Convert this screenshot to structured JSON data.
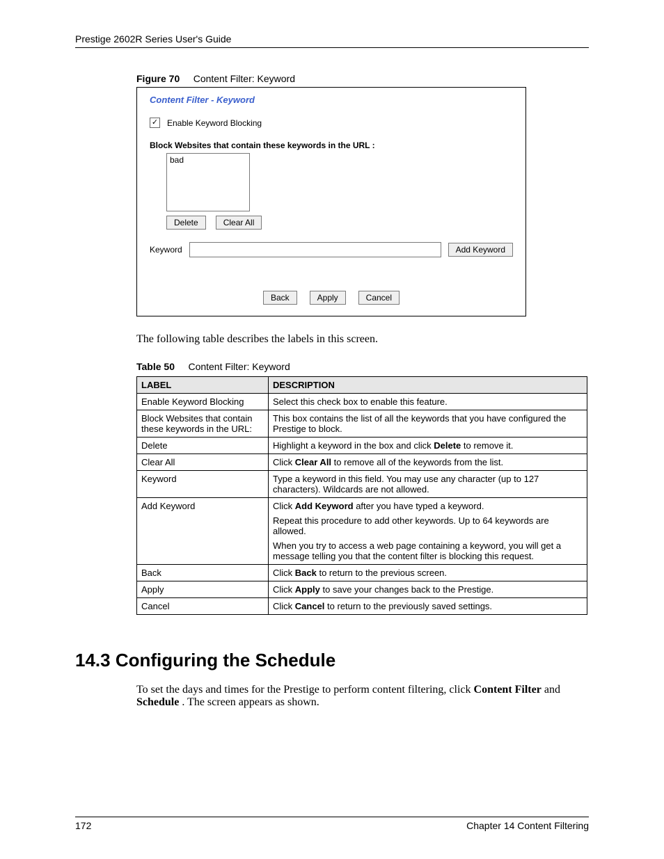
{
  "header": "Prestige 2602R Series User's Guide",
  "figure": {
    "label": "Figure 70",
    "title": "Content Filter: Keyword"
  },
  "screenshot": {
    "title": "Content Filter - Keyword",
    "enable_checkbox_checked": true,
    "enable_label": "Enable Keyword Blocking",
    "block_heading": "Block Websites that contain these keywords in the URL :",
    "keywords": [
      "bad"
    ],
    "delete_btn": "Delete",
    "clearall_btn": "Clear All",
    "keyword_label": "Keyword",
    "addkeyword_btn": "Add Keyword",
    "back_btn": "Back",
    "apply_btn": "Apply",
    "cancel_btn": "Cancel"
  },
  "intro_text": "The following table describes the labels in this screen.",
  "table_caption": {
    "label": "Table 50",
    "title": "Content Filter: Keyword"
  },
  "table": {
    "header": {
      "c1": "LABEL",
      "c2": "DESCRIPTION"
    },
    "rows": [
      {
        "c1": "Enable Keyword Blocking",
        "c2": [
          {
            "t": "Select this check box to enable this feature."
          }
        ]
      },
      {
        "c1": "Block Websites that contain these keywords in the URL:",
        "c2": [
          {
            "t": "This box contains the list of all the keywords that you have configured the Prestige to block."
          }
        ]
      },
      {
        "c1": "Delete",
        "c2": [
          {
            "pre": "Highlight a keyword in the box and click ",
            "b": "Delete",
            "post": " to remove it."
          }
        ]
      },
      {
        "c1": "Clear All",
        "c2": [
          {
            "pre": "Click ",
            "b": "Clear All",
            "post": " to remove all of the keywords from the list."
          }
        ]
      },
      {
        "c1": "Keyword",
        "c2": [
          {
            "t": "Type a keyword in this field. You may use any character (up to 127 characters). Wildcards are not allowed."
          }
        ]
      },
      {
        "c1": "Add Keyword",
        "c2": [
          {
            "pre": "Click ",
            "b": "Add Keyword",
            "post": " after you have typed a keyword."
          },
          {
            "t": "Repeat this procedure to add other keywords. Up to 64 keywords are allowed."
          },
          {
            "t": "When you try to access a web page containing a keyword, you will get a message telling you that the content filter is blocking this request."
          }
        ]
      },
      {
        "c1": "Back",
        "c2": [
          {
            "pre": "Click ",
            "b": "Back",
            "post": " to return to the previous screen."
          }
        ]
      },
      {
        "c1": "Apply",
        "c2": [
          {
            "pre": "Click ",
            "b": "Apply",
            "post": " to save your changes back to the Prestige."
          }
        ]
      },
      {
        "c1": "Cancel",
        "c2": [
          {
            "pre": "Click ",
            "b": "Cancel",
            "post": " to return to the previously saved settings."
          }
        ]
      }
    ]
  },
  "section": {
    "heading": "14.3  Configuring the Schedule",
    "body_pre": "To set the days and times for the Prestige to perform content filtering, click ",
    "body_b1": "Content Filter",
    "body_mid": " and ",
    "body_b2": "Schedule",
    "body_post": ". The screen appears as shown."
  },
  "footer": {
    "page": "172",
    "chapter": "Chapter 14 Content Filtering"
  }
}
